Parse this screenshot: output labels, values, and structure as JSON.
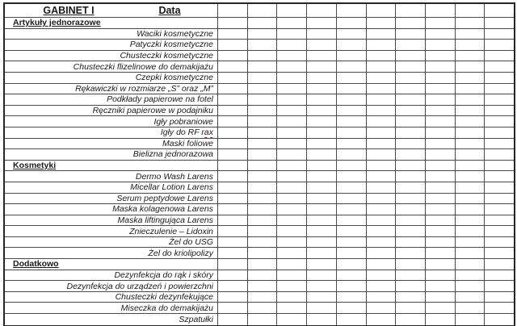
{
  "sheet": {
    "header": {
      "cabinet_label": "GABINET I",
      "date_label": "Data"
    },
    "empty_columns": 10,
    "misspelled_word": "rax",
    "sections": [
      {
        "title": "Artykuły jednorazowe",
        "items": [
          "Waciki kosmetyczne",
          "Patyczki kosmetyczne",
          "Chusteczki kosmetyczne",
          "Chusteczki flizelinowe do demakijażu",
          "Czepki kosmetyczne",
          "Rękawiczki w rozmiarze „S” oraz „M”",
          "Podkłady papierowe na fotel",
          "Ręczniki papierowe w podajniku",
          "Igły pobraniowe",
          "Igły do RF rax",
          "Maski foliowe",
          "Bielizna jednorazowa"
        ]
      },
      {
        "title": "Kosmetyki",
        "items": [
          "Dermo Wash Larens",
          "Micellar Lotion Larens",
          "Serum peptydowe Larens",
          "Maska kolagenowa Larens",
          "Maska liftingująca Larens",
          "Znieczulenie – Lidoxin",
          "Żel do USG",
          "Żel do kriolipolizy"
        ]
      },
      {
        "title": "Dodatkowo",
        "items": [
          "Dezynfekcja do rąk i skóry",
          "Dezynfekcja do urządzeń i powierzchni",
          "Chusteczki dezynfekujące",
          "Miseczka do demakijażu",
          "Szpatułki"
        ]
      }
    ],
    "colors": {
      "grid_line": "#4a4a4a",
      "outer_border": "#262626",
      "text": "#1a1a1a",
      "spellcheck_underline": "#cc0000",
      "background": "#ffffff"
    }
  }
}
